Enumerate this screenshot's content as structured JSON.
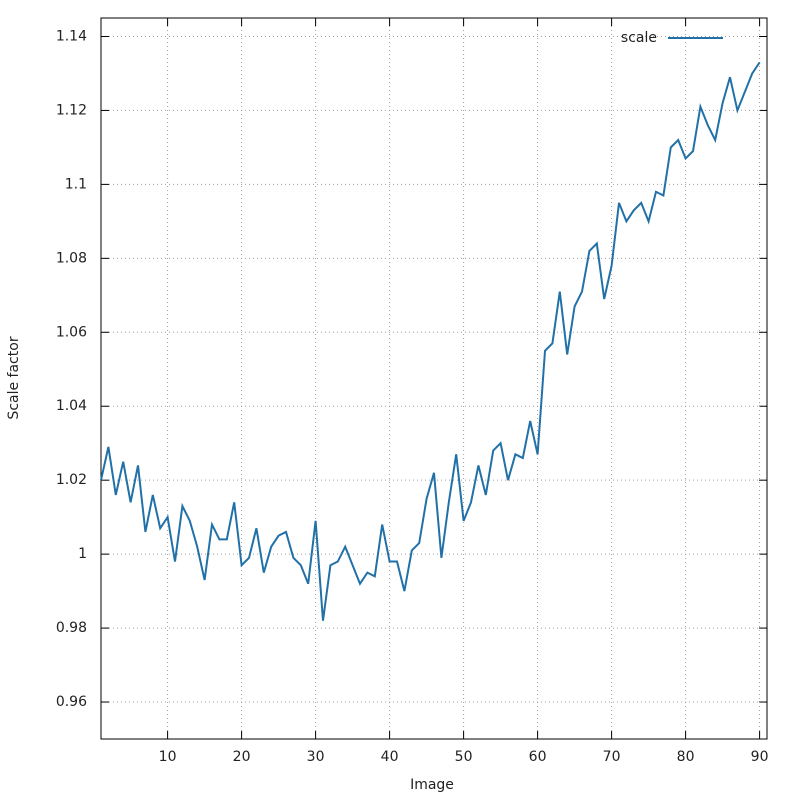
{
  "chart_data": {
    "type": "line",
    "x_label": "Image",
    "y_label": "Scale factor",
    "x": [
      1,
      2,
      3,
      4,
      5,
      6,
      7,
      8,
      9,
      10,
      11,
      12,
      13,
      14,
      15,
      16,
      17,
      18,
      19,
      20,
      21,
      22,
      23,
      24,
      25,
      26,
      27,
      28,
      29,
      30,
      31,
      32,
      33,
      34,
      35,
      36,
      37,
      38,
      39,
      40,
      41,
      42,
      43,
      44,
      45,
      46,
      47,
      48,
      49,
      50,
      51,
      52,
      53,
      54,
      55,
      56,
      57,
      58,
      59,
      60,
      61,
      62,
      63,
      64,
      65,
      66,
      67,
      68,
      69,
      70,
      71,
      72,
      73,
      74,
      75,
      76,
      77,
      78,
      79,
      80,
      81,
      82,
      83,
      84,
      85,
      86,
      87,
      88,
      89,
      90
    ],
    "series": [
      {
        "name": "scale",
        "color": "#2171a8",
        "values": [
          1.02,
          1.029,
          1.016,
          1.025,
          1.014,
          1.024,
          1.006,
          1.016,
          1.007,
          1.01,
          0.998,
          1.013,
          1.009,
          1.002,
          0.993,
          1.008,
          1.004,
          1.004,
          1.014,
          0.997,
          0.999,
          1.007,
          0.995,
          1.002,
          1.005,
          1.006,
          0.999,
          0.997,
          0.992,
          1.009,
          0.982,
          0.997,
          0.998,
          1.002,
          0.997,
          0.992,
          0.995,
          0.994,
          1.008,
          0.998,
          0.998,
          0.99,
          1.001,
          1.003,
          1.015,
          1.022,
          0.999,
          1.014,
          1.027,
          1.009,
          1.014,
          1.024,
          1.016,
          1.028,
          1.03,
          1.02,
          1.027,
          1.026,
          1.036,
          1.027,
          1.055,
          1.057,
          1.071,
          1.054,
          1.067,
          1.071,
          1.082,
          1.084,
          1.069,
          1.078,
          1.095,
          1.09,
          1.093,
          1.095,
          1.09,
          1.098,
          1.097,
          1.11,
          1.112,
          1.107,
          1.109,
          1.121,
          1.116,
          1.112,
          1.122,
          1.129,
          1.12,
          1.125,
          1.13,
          1.133
        ]
      }
    ],
    "xlim": [
      1,
      91
    ],
    "xticks": [
      10,
      20,
      30,
      40,
      50,
      60,
      70,
      80,
      90
    ],
    "ylim": [
      0.95,
      1.145
    ],
    "yticks": [
      0.96,
      0.98,
      1,
      1.02,
      1.04,
      1.06,
      1.08,
      1.1,
      1.12,
      1.14
    ],
    "grid": true,
    "legend": "top-right"
  }
}
